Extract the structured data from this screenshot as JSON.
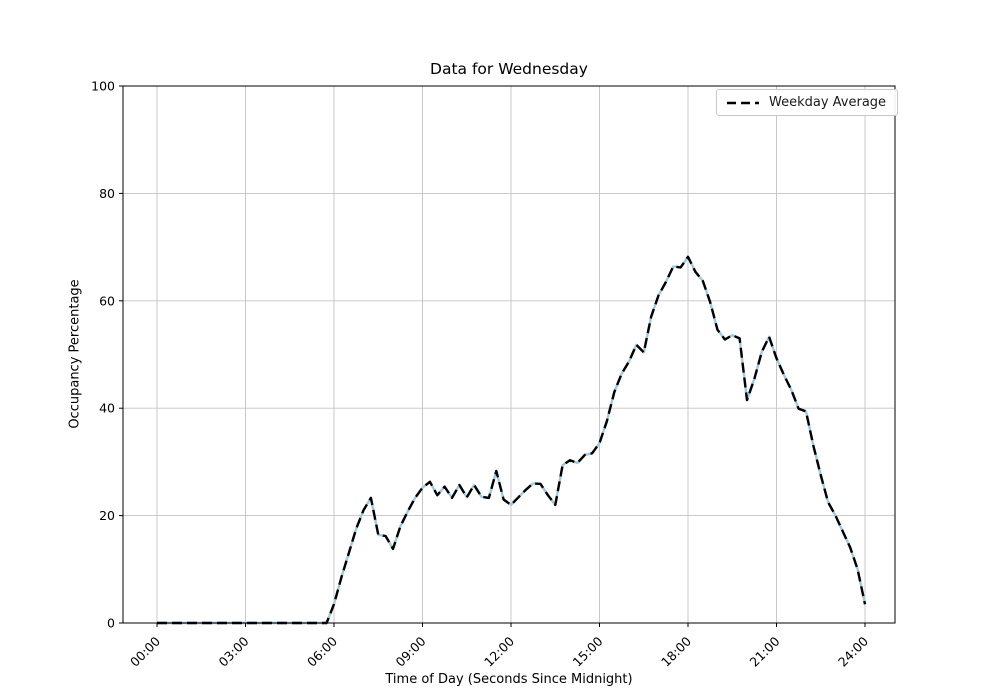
{
  "chart_data": {
    "type": "line",
    "title": "Data for Wednesday",
    "xlabel": "Time of Day (Seconds Since Midnight)",
    "ylabel": "Occupancy Percentage",
    "ylim": [
      0,
      100
    ],
    "y_ticks": [
      0,
      20,
      40,
      60,
      80,
      100
    ],
    "x_ticks": [
      {
        "label": "00:00",
        "hour": 0
      },
      {
        "label": "03:00",
        "hour": 3
      },
      {
        "label": "06:00",
        "hour": 6
      },
      {
        "label": "09:00",
        "hour": 9
      },
      {
        "label": "12:00",
        "hour": 12
      },
      {
        "label": "15:00",
        "hour": 15
      },
      {
        "label": "18:00",
        "hour": 18
      },
      {
        "label": "21:00",
        "hour": 21
      },
      {
        "label": "24:00",
        "hour": 24
      }
    ],
    "grid": true,
    "grid_color": "#c3c3c3",
    "spine_color": "#000000",
    "legend": {
      "position": "upper right",
      "entries": [
        {
          "label": "Weekday Average",
          "color": "#000000",
          "linestyle": "dashed"
        }
      ]
    },
    "series": [
      {
        "name": "Weekday Average",
        "color": "#000000",
        "linestyle": "dashed",
        "underlay_color": "#9ecae1",
        "x": [
          "00:00",
          "00:15",
          "00:30",
          "00:45",
          "01:00",
          "01:15",
          "01:30",
          "01:45",
          "02:00",
          "02:15",
          "02:30",
          "02:45",
          "03:00",
          "03:15",
          "03:30",
          "03:45",
          "04:00",
          "04:15",
          "04:30",
          "04:45",
          "05:00",
          "05:15",
          "05:30",
          "05:45",
          "06:00",
          "06:15",
          "06:30",
          "06:45",
          "07:00",
          "07:15",
          "07:30",
          "07:45",
          "08:00",
          "08:15",
          "08:30",
          "08:45",
          "09:00",
          "09:15",
          "09:30",
          "09:45",
          "10:00",
          "10:15",
          "10:30",
          "10:45",
          "11:00",
          "11:15",
          "11:30",
          "11:45",
          "12:00",
          "12:15",
          "12:30",
          "12:45",
          "13:00",
          "13:15",
          "13:30",
          "13:45",
          "14:00",
          "14:15",
          "14:30",
          "14:45",
          "15:00",
          "15:15",
          "15:30",
          "15:45",
          "16:00",
          "16:15",
          "16:30",
          "16:45",
          "17:00",
          "17:15",
          "17:30",
          "17:45",
          "18:00",
          "18:15",
          "18:30",
          "18:45",
          "19:00",
          "19:15",
          "19:30",
          "19:45",
          "20:00",
          "20:15",
          "20:30",
          "20:45",
          "21:00",
          "21:15",
          "21:30",
          "21:45",
          "22:00",
          "22:15",
          "22:30",
          "22:45",
          "23:00",
          "23:15",
          "23:30",
          "23:45",
          "24:00"
        ],
        "values": [
          0,
          0,
          0,
          0,
          0,
          0,
          0,
          0,
          0,
          0,
          0,
          0,
          0,
          0,
          0,
          0,
          0,
          0,
          0,
          0,
          0,
          0,
          0,
          0,
          3.5,
          8.5,
          13,
          17.5,
          21,
          23.3,
          16.4,
          16.2,
          13.8,
          18,
          20.8,
          23.3,
          25.2,
          26.3,
          23.8,
          25.4,
          23.3,
          25.7,
          23.4,
          25.7,
          23.5,
          23.3,
          28.3,
          23,
          22,
          23.4,
          24.8,
          26,
          25.9,
          23.8,
          22,
          29.4,
          30.3,
          29.8,
          31.3,
          31.6,
          33.5,
          37.6,
          43,
          46.4,
          48.7,
          51.8,
          50.4,
          57,
          61,
          63.5,
          66.4,
          66.2,
          68.2,
          65.4,
          63.7,
          59.8,
          54.6,
          52.8,
          53.6,
          53,
          41.5,
          45.5,
          50.5,
          53.3,
          49.3,
          46.2,
          43.4,
          39.9,
          39.4,
          33,
          27.5,
          22.5,
          20,
          17,
          14,
          10,
          3.5
        ]
      }
    ]
  }
}
